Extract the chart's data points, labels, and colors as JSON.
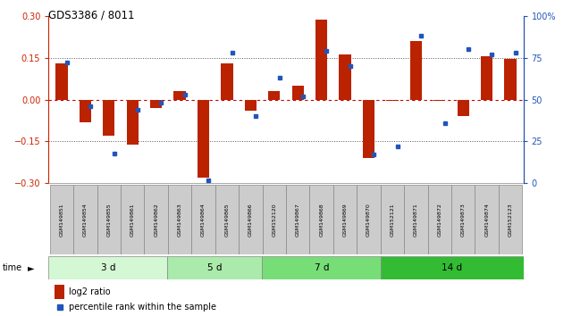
{
  "title": "GDS3386 / 8011",
  "samples": [
    "GSM149851",
    "GSM149854",
    "GSM149855",
    "GSM149861",
    "GSM149862",
    "GSM149863",
    "GSM149864",
    "GSM149865",
    "GSM149866",
    "GSM152120",
    "GSM149867",
    "GSM149868",
    "GSM149869",
    "GSM149870",
    "GSM152121",
    "GSM149871",
    "GSM149872",
    "GSM149873",
    "GSM149874",
    "GSM152123"
  ],
  "log2_ratio": [
    0.13,
    -0.08,
    -0.13,
    -0.16,
    -0.03,
    0.03,
    -0.28,
    0.13,
    -0.04,
    0.03,
    0.05,
    0.285,
    0.16,
    -0.21,
    -0.005,
    0.21,
    -0.005,
    -0.06,
    0.155,
    0.145
  ],
  "percentile_rank": [
    72,
    46,
    18,
    44,
    48,
    53,
    2,
    78,
    40,
    63,
    52,
    79,
    70,
    17,
    22,
    88,
    36,
    80,
    77,
    78
  ],
  "groups": [
    {
      "label": "3 d",
      "start": 0,
      "end": 5,
      "color": "#d4f7d4"
    },
    {
      "label": "5 d",
      "start": 5,
      "end": 9,
      "color": "#aaeaaa"
    },
    {
      "label": "7 d",
      "start": 9,
      "end": 14,
      "color": "#77dd77"
    },
    {
      "label": "14 d",
      "start": 14,
      "end": 20,
      "color": "#33bb33"
    }
  ],
  "ylim_left": [
    -0.3,
    0.3
  ],
  "ylim_right": [
    0,
    100
  ],
  "bar_color": "#bb2200",
  "dot_color": "#2255bb",
  "hline_color": "#cc0000",
  "dotted_color": "#555555",
  "bg_color": "#ffffff",
  "legend_bar": "log2 ratio",
  "legend_dot": "percentile rank within the sample",
  "left_ticks": [
    -0.3,
    -0.15,
    0.0,
    0.15,
    0.3
  ],
  "right_ticks": [
    0,
    25,
    50,
    75,
    100
  ],
  "right_tick_labels": [
    "0",
    "25",
    "50",
    "75",
    "100%"
  ],
  "sample_box_color": "#cccccc",
  "sample_box_edge": "#888888"
}
